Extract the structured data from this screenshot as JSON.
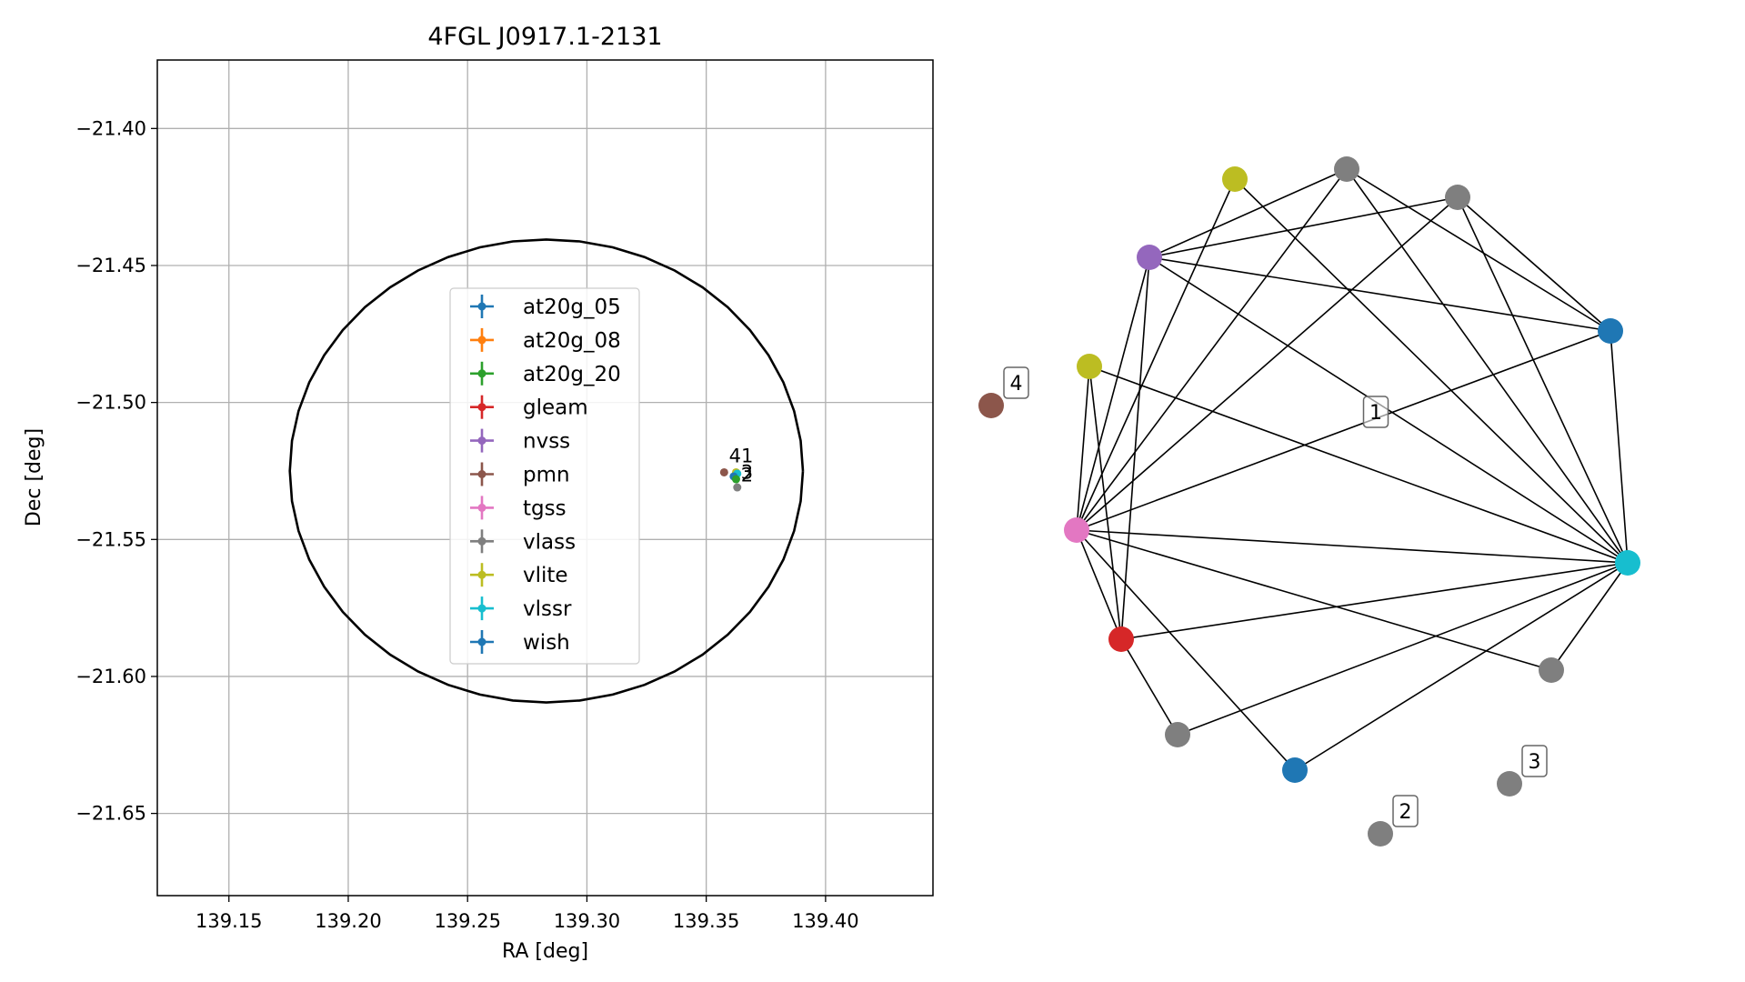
{
  "figure": {
    "title": "4FGL J0917.1-2131"
  },
  "chart_data": [
    {
      "type": "scatter",
      "title": "4FGL J0917.1-2131",
      "xlabel": "RA [deg]",
      "ylabel": "Dec [deg]",
      "xlim": [
        139.12,
        139.445
      ],
      "ylim": [
        -21.68,
        -21.375
      ],
      "y_inverted": false,
      "grid": true,
      "xticks": [
        139.15,
        139.2,
        139.25,
        139.3,
        139.35,
        139.4
      ],
      "xtick_labels": [
        "139.15",
        "139.20",
        "139.25",
        "139.30",
        "139.35",
        "139.40"
      ],
      "yticks": [
        -21.4,
        -21.45,
        -21.5,
        -21.55,
        -21.6,
        -21.65
      ],
      "ytick_labels": [
        "−21.40",
        "−21.45",
        "−21.50",
        "−21.55",
        "−21.60",
        "−21.65"
      ],
      "ellipse": {
        "center_ra": 139.283,
        "center_dec": -21.525,
        "semi_ra": 0.1075,
        "semi_dec": 0.0845,
        "color": "#000000"
      },
      "legend": {
        "placement": "center",
        "entries": [
          {
            "name": "at20g_05",
            "color": "#1f77b4"
          },
          {
            "name": "at20g_08",
            "color": "#ff7f0e"
          },
          {
            "name": "at20g_20",
            "color": "#2ca02c"
          },
          {
            "name": "gleam",
            "color": "#d62728"
          },
          {
            "name": "nvss",
            "color": "#9467bd"
          },
          {
            "name": "pmn",
            "color": "#8c564b"
          },
          {
            "name": "tgss",
            "color": "#e377c2"
          },
          {
            "name": "vlass",
            "color": "#7f7f7f"
          },
          {
            "name": "vlite",
            "color": "#bcbd22"
          },
          {
            "name": "vlssr",
            "color": "#17becf"
          },
          {
            "name": "wish",
            "color": "#1f77b4"
          }
        ]
      },
      "points": [
        {
          "ra": 139.3575,
          "dec": -21.5255,
          "color": "#8c564b"
        },
        {
          "ra": 139.3625,
          "dec": -21.5255,
          "color": "#bcbd22"
        },
        {
          "ra": 139.363,
          "dec": -21.526,
          "color": "#17becf"
        },
        {
          "ra": 139.3615,
          "dec": -21.527,
          "color": "#1f77b4"
        },
        {
          "ra": 139.3625,
          "dec": -21.528,
          "color": "#2ca02c"
        },
        {
          "ra": 139.363,
          "dec": -21.531,
          "color": "#7f7f7f"
        }
      ],
      "point_labels": [
        {
          "text": "41",
          "ra": 139.3595,
          "dec": -21.5195
        },
        {
          "text": "3",
          "ra": 139.3645,
          "dec": -21.5255
        },
        {
          "text": "2",
          "ra": 139.3645,
          "dec": -21.5265
        }
      ]
    },
    {
      "type": "network",
      "nodes": [
        {
          "id": "vlite_top",
          "color": "#bcbd22"
        },
        {
          "id": "vlass_top",
          "color": "#7f7f7f"
        },
        {
          "id": "vlass_topright",
          "color": "#7f7f7f"
        },
        {
          "id": "nvss",
          "color": "#9467bd"
        },
        {
          "id": "wish_right",
          "color": "#1f77b4"
        },
        {
          "id": "vlite_left",
          "color": "#bcbd22"
        },
        {
          "id": "pmn",
          "color": "#8c564b",
          "label": "4"
        },
        {
          "id": "tgss",
          "color": "#e377c2"
        },
        {
          "id": "vlssr",
          "color": "#17becf"
        },
        {
          "id": "gleam",
          "color": "#d62728"
        },
        {
          "id": "vlass_right",
          "color": "#7f7f7f"
        },
        {
          "id": "vlass_bottomleft",
          "color": "#7f7f7f"
        },
        {
          "id": "at20g_bottom",
          "color": "#1f77b4"
        },
        {
          "id": "vlass_iso3",
          "color": "#7f7f7f",
          "label": "3"
        },
        {
          "id": "vlass_iso2",
          "color": "#7f7f7f",
          "label": "2"
        }
      ],
      "group_labels": [
        {
          "text": "1"
        }
      ],
      "edges": [
        [
          "vlite_top",
          "tgss"
        ],
        [
          "vlite_top",
          "vlssr"
        ],
        [
          "vlass_top",
          "nvss"
        ],
        [
          "vlass_top",
          "wish_right"
        ],
        [
          "vlass_top",
          "vlssr"
        ],
        [
          "vlass_top",
          "tgss"
        ],
        [
          "vlass_topright",
          "nvss"
        ],
        [
          "vlass_topright",
          "wish_right"
        ],
        [
          "vlass_topright",
          "vlssr"
        ],
        [
          "vlass_topright",
          "tgss"
        ],
        [
          "nvss",
          "wish_right"
        ],
        [
          "nvss",
          "vlssr"
        ],
        [
          "nvss",
          "tgss"
        ],
        [
          "nvss",
          "gleam"
        ],
        [
          "vlite_left",
          "tgss"
        ],
        [
          "vlite_left",
          "vlssr"
        ],
        [
          "vlite_left",
          "gleam"
        ],
        [
          "wish_right",
          "vlssr"
        ],
        [
          "wish_right",
          "tgss"
        ],
        [
          "tgss",
          "vlssr"
        ],
        [
          "tgss",
          "gleam"
        ],
        [
          "tgss",
          "vlass_right"
        ],
        [
          "tgss",
          "at20g_bottom"
        ],
        [
          "gleam",
          "vlssr"
        ],
        [
          "gleam",
          "vlass_bottomleft"
        ],
        [
          "vlass_bottomleft",
          "vlssr"
        ],
        [
          "at20g_bottom",
          "vlssr"
        ],
        [
          "vlass_right",
          "vlssr"
        ]
      ]
    }
  ]
}
